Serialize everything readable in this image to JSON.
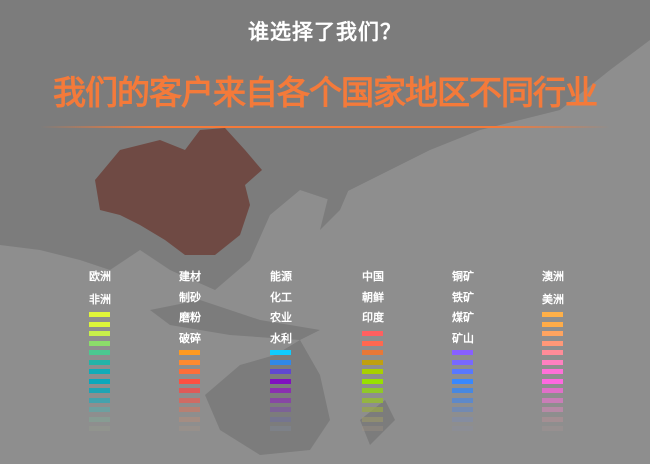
{
  "header": {
    "question": "谁选择了我们？",
    "headline": "我们的客户来自各个国家地区不同行业"
  },
  "colors": {
    "headline": "#f47a3a",
    "china": "#6f4a44",
    "background": "#8e8e8e",
    "land": "#7a7a7a"
  },
  "columns": [
    {
      "labels": [
        "欧洲",
        "非洲"
      ],
      "bar_start_slot": 0,
      "bars": [
        "#e0f53a",
        "#dcf53a",
        "#c8f04a",
        "#8cdc6a",
        "#4cc890",
        "#22b4a8",
        "#10acb8",
        "#0aa8bc",
        "#20a4b4",
        "#3aa4b0",
        "#60a8a8",
        "#80a898",
        "#98a090"
      ]
    },
    {
      "labels": [
        "建材",
        "制砂",
        "磨粉",
        "破碎"
      ],
      "bar_start_slot": 4,
      "bars": [
        "#ff9a20",
        "#ff8a30",
        "#ff6e38",
        "#ff5040",
        "#e05a58",
        "#d8665e",
        "#c87a68",
        "#b88c78",
        "#a89488"
      ]
    },
    {
      "labels": [
        "能源",
        "化工",
        "农业",
        "水利"
      ],
      "bar_start_slot": 4,
      "bars": [
        "#10ccff",
        "#3088e8",
        "#6048d0",
        "#8010c0",
        "#8a30b0",
        "#8840a8",
        "#7c58a0",
        "#7070a0",
        "#808ca0"
      ]
    },
    {
      "labels": [
        "中国",
        "朝鲜",
        "印度"
      ],
      "bar_start_slot": 2,
      "bars": [
        "#ff6060",
        "#ff6850",
        "#e87838",
        "#c0a010",
        "#a8d000",
        "#98e000",
        "#90c828",
        "#94b838",
        "#98a848",
        "#a09c68",
        "#a49484"
      ]
    },
    {
      "labels": [
        "铜矿",
        "铁矿",
        "煤矿",
        "矿山"
      ],
      "bar_start_slot": 4,
      "bars": [
        "#8860ff",
        "#7868ff",
        "#5878ff",
        "#3888ff",
        "#4888e0",
        "#5888d0",
        "#6888c0",
        "#7c8cb0",
        "#8a90a4"
      ]
    },
    {
      "labels": [
        "澳洲",
        "美洲"
      ],
      "bar_start_slot": 0,
      "bars": [
        "#ffb048",
        "#ffac48",
        "#ffa460",
        "#ff9878",
        "#ff8c98",
        "#ff80c0",
        "#ff70d8",
        "#ff68e0",
        "#e070c8",
        "#d07cbc",
        "#c888b0",
        "#b89098",
        "#a89494"
      ]
    }
  ]
}
